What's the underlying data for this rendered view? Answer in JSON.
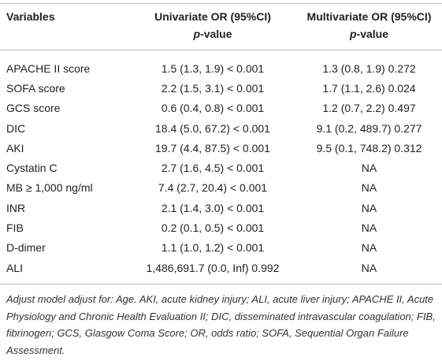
{
  "table": {
    "header": [
      {
        "title": "Variables"
      },
      {
        "title": "Univariate OR (95%CI)",
        "sub": [
          "p",
          "-value"
        ]
      },
      {
        "title": "Multivariate OR (95%CI)",
        "sub": [
          "p",
          "-value"
        ]
      }
    ],
    "rows": [
      [
        "APACHE II score",
        "1.5 (1.3, 1.9) < 0.001",
        "1.3 (0.8, 1.9) 0.272"
      ],
      [
        "SOFA score",
        "2.2 (1.5, 3.1) < 0.001",
        "1.7 (1.1, 2.6) 0.024"
      ],
      [
        "GCS score",
        "0.6 (0.4, 0.8) < 0.001",
        "1.2 (0.7, 2.2) 0.497"
      ],
      [
        "DIC",
        "18.4 (5.0, 67.2) < 0.001",
        "9.1 (0.2, 489.7) 0.277"
      ],
      [
        "AKI",
        "19.7 (4.4, 87.5) < 0.001",
        "9.5 (0.1, 748.2) 0.312"
      ],
      [
        "Cystatin C",
        "2.7 (1.6, 4.5) < 0.001",
        "NA"
      ],
      [
        "MB ≥ 1,000 ng/ml",
        "7.4 (2.7, 20.4) < 0.001",
        "NA"
      ],
      [
        "INR",
        "2.1 (1.4, 3.0) < 0.001",
        "NA"
      ],
      [
        "FIB",
        "0.2 (0.1, 0.5) < 0.001",
        "NA"
      ],
      [
        "D-dimer",
        "1.1 (1.0, 1.2) < 0.001",
        "NA"
      ],
      [
        "ALI",
        "1,486,691.7 (0.0, Inf) 0.992",
        "NA"
      ]
    ]
  },
  "footnote": "Adjust model adjust for: Age. AKI, acute kidney injury; ALI, acute liver injury; APACHE II, Acute Physiology and Chronic Health Evaluation II; DIC, disseminated intravascular coagulation; FIB, fibrinogen; GCS, Glasgow Coma Score; OR, odds ratio; SOFA, Sequential Organ Failure Assessment."
}
